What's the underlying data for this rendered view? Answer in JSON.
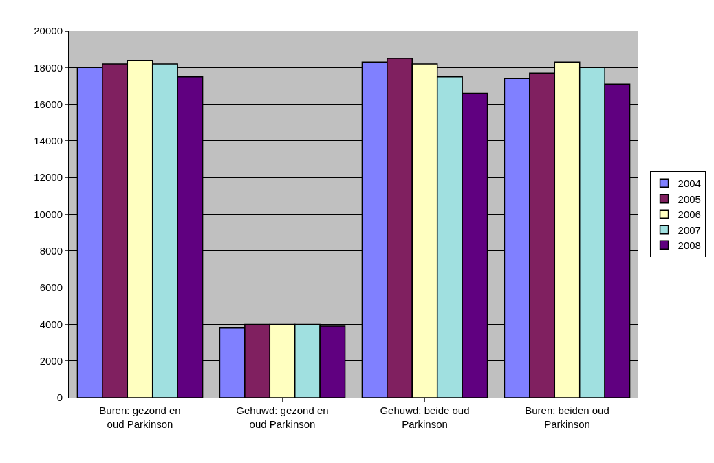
{
  "chart_data": {
    "type": "bar",
    "categories": [
      "Buren: gezond en oud Parkinson",
      "Gehuwd: gezond en oud Parkinson",
      "Gehuwd: beide oud Parkinson",
      "Buren: beiden oud Parkinson"
    ],
    "series": [
      {
        "name": "2004",
        "color": "#8080ff",
        "values": [
          18000,
          3800,
          18300,
          17400
        ]
      },
      {
        "name": "2005",
        "color": "#802060",
        "values": [
          18200,
          4000,
          18500,
          17700
        ]
      },
      {
        "name": "2006",
        "color": "#ffffc0",
        "values": [
          18400,
          4000,
          18200,
          18300
        ]
      },
      {
        "name": "2007",
        "color": "#a0e0e0",
        "values": [
          18200,
          4000,
          17500,
          18000
        ]
      },
      {
        "name": "2008",
        "color": "#600080",
        "values": [
          17500,
          3900,
          16600,
          17100
        ]
      }
    ],
    "ylim": [
      0,
      20000
    ],
    "yticks": [
      0,
      2000,
      4000,
      6000,
      8000,
      10000,
      12000,
      14000,
      16000,
      18000,
      20000
    ],
    "grid": "y",
    "legend": "right"
  }
}
